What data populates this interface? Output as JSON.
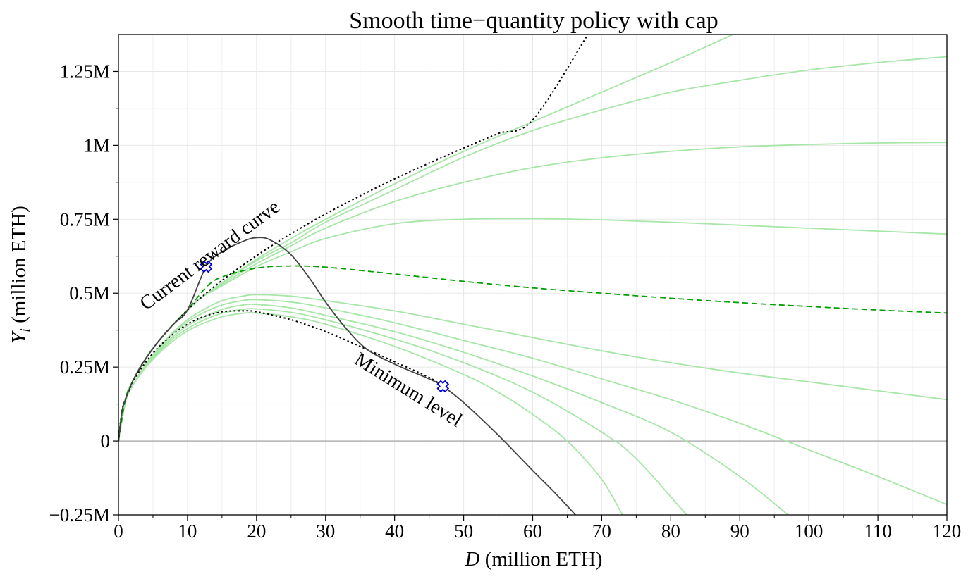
{
  "chart_data": {
    "type": "line",
    "title": "Smooth time−quantity policy with cap",
    "xlabel_var": "D",
    "xlabel_rest": " (million ETH)",
    "ylabel_var": "Y",
    "ylabel_sub": "i",
    "ylabel_rest": " (million ETH)",
    "xlim": [
      0,
      120
    ],
    "ylim": [
      -0.25,
      1.375
    ],
    "x_ticks": [
      0,
      10,
      20,
      30,
      40,
      50,
      60,
      70,
      80,
      90,
      100,
      110,
      120
    ],
    "x_tick_labels": [
      "0",
      "10",
      "20",
      "30",
      "40",
      "50",
      "60",
      "70",
      "80",
      "90",
      "100",
      "110",
      "120"
    ],
    "y_ticks": [
      -0.25,
      0,
      0.25,
      0.5,
      0.75,
      1.0,
      1.25
    ],
    "y_tick_labels": [
      "−0.25M",
      "0",
      "0.25M",
      "0.5M",
      "0.75M",
      "1M",
      "1.25M"
    ],
    "grid": true,
    "zero_line": true,
    "colors": {
      "family": "#a6e6a6",
      "highlight": "#00a000",
      "reference": "#000000",
      "solid_curve": "#444444",
      "marker_stroke": "#0000cc",
      "marker_fill": "#ffffff"
    },
    "annotations": [
      {
        "text": "Current reward curve",
        "x": 4,
        "y": 0.44,
        "angle": -37
      },
      {
        "text": "Minimum level",
        "x": 34,
        "y": 0.265,
        "angle": 32
      }
    ],
    "markers": [
      {
        "x": 12.7,
        "y": 0.59
      },
      {
        "x": 47,
        "y": 0.185
      }
    ],
    "series": [
      {
        "style": "reference-dotted",
        "x": [
          0,
          0.5,
          1,
          2,
          3,
          4,
          5,
          6,
          8,
          10,
          12,
          15,
          20,
          25,
          30,
          35,
          40,
          45,
          50,
          55,
          60,
          68
        ],
        "y": [
          0,
          0.099,
          0.14,
          0.199,
          0.244,
          0.28,
          0.313,
          0.343,
          0.396,
          0.443,
          0.486,
          0.543,
          0.627,
          0.701,
          0.768,
          0.829,
          0.887,
          0.94,
          0.991,
          1.04,
          1.086,
          1.375
        ]
      },
      {
        "style": "reference-dotted",
        "x": [
          0,
          0.5,
          1,
          2,
          3,
          4,
          5,
          6,
          8,
          10,
          12,
          15,
          18,
          20,
          25,
          30,
          35,
          40,
          45,
          47
        ],
        "y": [
          0,
          0.099,
          0.14,
          0.195,
          0.235,
          0.268,
          0.297,
          0.322,
          0.363,
          0.395,
          0.418,
          0.437,
          0.44,
          0.437,
          0.41,
          0.37,
          0.32,
          0.268,
          0.215,
          0.185
        ]
      },
      {
        "style": "solid-dark",
        "x": [
          0,
          0.5,
          1,
          2,
          3,
          4,
          5,
          6,
          8,
          10,
          12.7,
          15,
          18,
          20,
          22,
          25,
          28,
          30,
          33,
          36,
          40,
          45,
          47,
          50,
          55,
          60,
          63,
          66.2
        ],
        "y": [
          0,
          0.099,
          0.14,
          0.199,
          0.244,
          0.28,
          0.313,
          0.343,
          0.396,
          0.443,
          0.59,
          0.64,
          0.675,
          0.688,
          0.68,
          0.63,
          0.54,
          0.47,
          0.38,
          0.31,
          0.26,
          0.21,
          0.185,
          0.13,
          0.02,
          -0.1,
          -0.17,
          -0.25
        ]
      },
      {
        "style": "highlight-dashed",
        "x": [
          0,
          1,
          2,
          4,
          6,
          8,
          10,
          12.7,
          15,
          20,
          25,
          30,
          40,
          50,
          60,
          70,
          80,
          90,
          100,
          110,
          120
        ],
        "y": [
          0,
          0.14,
          0.199,
          0.28,
          0.343,
          0.396,
          0.443,
          0.52,
          0.555,
          0.585,
          0.592,
          0.588,
          0.565,
          0.54,
          0.518,
          0.5,
          0.483,
          0.468,
          0.455,
          0.443,
          0.433
        ]
      },
      {
        "style": "family",
        "x": [
          0,
          1,
          2,
          4,
          6,
          8,
          10,
          12,
          15,
          20,
          25,
          30,
          40,
          50,
          60,
          70,
          80,
          89
        ],
        "y": [
          0,
          0.14,
          0.199,
          0.28,
          0.343,
          0.396,
          0.443,
          0.485,
          0.535,
          0.615,
          0.685,
          0.75,
          0.87,
          0.98,
          1.08,
          1.18,
          1.28,
          1.375
        ]
      },
      {
        "style": "family",
        "x": [
          0,
          1,
          2,
          4,
          6,
          8,
          10,
          12,
          15,
          20,
          25,
          30,
          40,
          50,
          60,
          70,
          80,
          90,
          100,
          110,
          120
        ],
        "y": [
          0,
          0.14,
          0.199,
          0.28,
          0.343,
          0.396,
          0.443,
          0.485,
          0.535,
          0.61,
          0.67,
          0.74,
          0.85,
          0.96,
          1.05,
          1.12,
          1.18,
          1.22,
          1.255,
          1.28,
          1.3
        ]
      },
      {
        "style": "family",
        "x": [
          0,
          1,
          2,
          4,
          6,
          8,
          10,
          12,
          15,
          20,
          25,
          30,
          40,
          50,
          60,
          70,
          80,
          90,
          100,
          110,
          120
        ],
        "y": [
          0,
          0.14,
          0.199,
          0.28,
          0.343,
          0.396,
          0.443,
          0.485,
          0.53,
          0.6,
          0.66,
          0.72,
          0.81,
          0.875,
          0.925,
          0.958,
          0.98,
          0.995,
          1.003,
          1.008,
          1.01
        ]
      },
      {
        "style": "family",
        "x": [
          0,
          1,
          2,
          4,
          6,
          8,
          10,
          12,
          15,
          20,
          25,
          30,
          40,
          50,
          60,
          70,
          80,
          90,
          100,
          110,
          120
        ],
        "y": [
          0,
          0.14,
          0.199,
          0.28,
          0.343,
          0.396,
          0.443,
          0.485,
          0.525,
          0.59,
          0.64,
          0.685,
          0.735,
          0.75,
          0.752,
          0.748,
          0.74,
          0.73,
          0.72,
          0.71,
          0.7
        ]
      },
      {
        "style": "family",
        "x": [
          0,
          1,
          2,
          4,
          6,
          8,
          10,
          12,
          15,
          18,
          20,
          25,
          30,
          40,
          50,
          60,
          70,
          80,
          90,
          100,
          110,
          120
        ],
        "y": [
          0,
          0.13,
          0.185,
          0.26,
          0.32,
          0.37,
          0.41,
          0.44,
          0.475,
          0.49,
          0.495,
          0.49,
          0.475,
          0.44,
          0.395,
          0.35,
          0.305,
          0.265,
          0.23,
          0.2,
          0.17,
          0.14
        ]
      },
      {
        "style": "family",
        "x": [
          0,
          1,
          2,
          4,
          6,
          8,
          10,
          12,
          15,
          18,
          20,
          25,
          30,
          40,
          50,
          60,
          70,
          80,
          90,
          100,
          110,
          120
        ],
        "y": [
          0,
          0.13,
          0.185,
          0.26,
          0.315,
          0.365,
          0.403,
          0.43,
          0.46,
          0.475,
          0.478,
          0.47,
          0.45,
          0.4,
          0.34,
          0.28,
          0.21,
          0.14,
          0.06,
          -0.03,
          -0.12,
          -0.215
        ]
      },
      {
        "style": "family",
        "x": [
          0,
          1,
          2,
          4,
          6,
          8,
          10,
          12,
          15,
          18,
          20,
          25,
          30,
          40,
          50,
          60,
          70,
          80,
          90,
          97
        ],
        "y": [
          0,
          0.13,
          0.185,
          0.255,
          0.31,
          0.355,
          0.39,
          0.415,
          0.445,
          0.46,
          0.462,
          0.45,
          0.425,
          0.37,
          0.3,
          0.22,
          0.13,
          0.03,
          -0.12,
          -0.25
        ]
      },
      {
        "style": "family",
        "x": [
          0,
          1,
          2,
          4,
          6,
          8,
          10,
          12,
          15,
          18,
          20,
          25,
          30,
          40,
          50,
          60,
          70,
          75,
          82.3
        ],
        "y": [
          0,
          0.13,
          0.185,
          0.252,
          0.305,
          0.348,
          0.38,
          0.405,
          0.432,
          0.445,
          0.447,
          0.435,
          0.41,
          0.345,
          0.265,
          0.165,
          0.03,
          -0.06,
          -0.25
        ]
      },
      {
        "style": "family",
        "x": [
          0,
          1,
          2,
          4,
          6,
          8,
          10,
          12,
          15,
          18,
          20,
          25,
          30,
          40,
          50,
          55,
          60,
          65,
          70,
          73
        ],
        "y": [
          0,
          0.13,
          0.185,
          0.25,
          0.3,
          0.34,
          0.372,
          0.395,
          0.42,
          0.432,
          0.433,
          0.42,
          0.395,
          0.32,
          0.225,
          0.165,
          0.09,
          0.0,
          -0.13,
          -0.25
        ]
      }
    ]
  }
}
